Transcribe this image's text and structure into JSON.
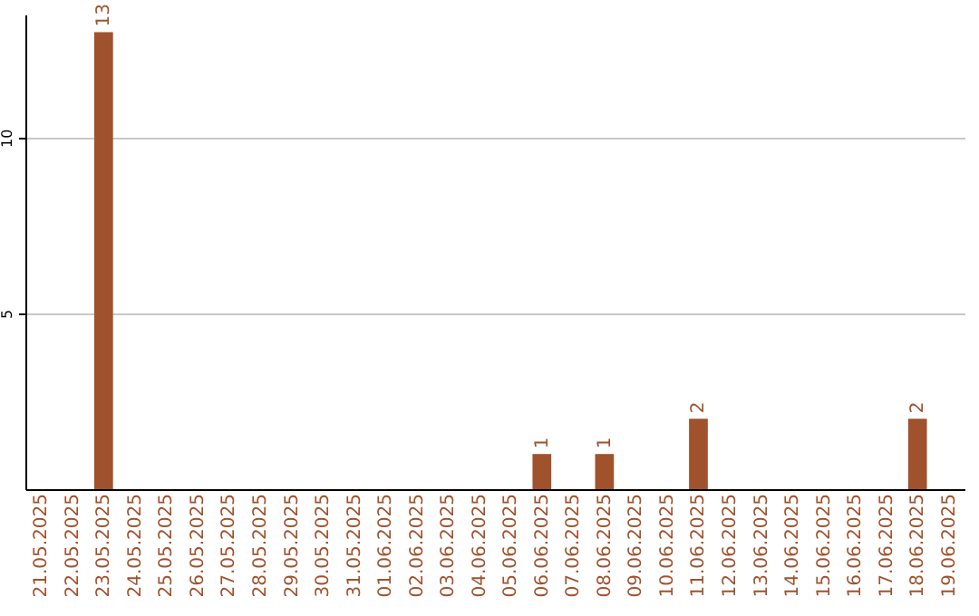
{
  "chart_data": {
    "type": "bar",
    "categories": [
      "21.05.2025",
      "22.05.2025",
      "23.05.2025",
      "24.05.2025",
      "25.05.2025",
      "26.05.2025",
      "27.05.2025",
      "28.05.2025",
      "29.05.2025",
      "30.05.2025",
      "31.05.2025",
      "01.06.2025",
      "02.06.2025",
      "03.06.2025",
      "04.06.2025",
      "05.06.2025",
      "06.06.2025",
      "07.06.2025",
      "08.06.2025",
      "09.06.2025",
      "10.06.2025",
      "11.06.2025",
      "12.06.2025",
      "13.06.2025",
      "14.06.2025",
      "15.06.2025",
      "16.06.2025",
      "17.06.2025",
      "18.06.2025",
      "19.06.2025"
    ],
    "values": [
      0,
      0,
      13,
      0,
      0,
      0,
      0,
      0,
      0,
      0,
      0,
      0,
      0,
      0,
      0,
      0,
      1,
      0,
      1,
      0,
      0,
      2,
      0,
      0,
      0,
      0,
      0,
      0,
      2,
      0
    ],
    "value_labels": [
      null,
      null,
      "13",
      null,
      null,
      null,
      null,
      null,
      null,
      null,
      null,
      null,
      null,
      null,
      null,
      null,
      "1",
      null,
      "1",
      null,
      null,
      "2",
      null,
      null,
      null,
      null,
      null,
      null,
      "2",
      null
    ],
    "color": "#a0522d",
    "ylim": [
      0,
      13.5
    ],
    "yticks": [
      5,
      10
    ],
    "grid": "y"
  }
}
